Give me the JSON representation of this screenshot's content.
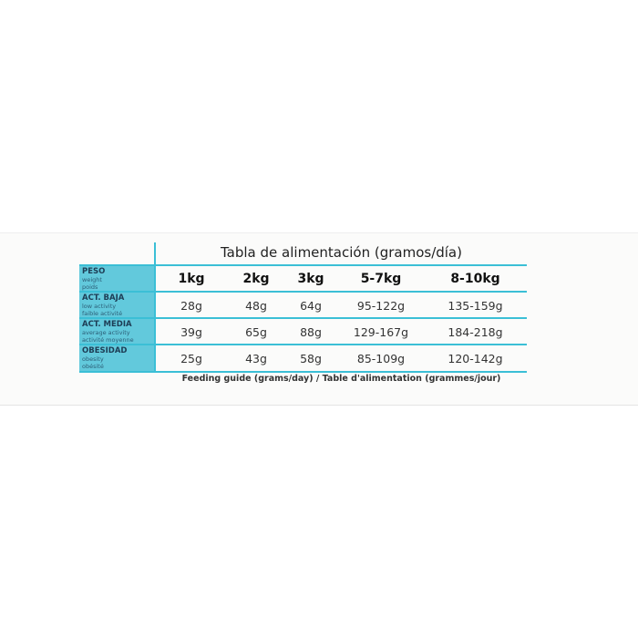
{
  "title": "Tabla de alimentación (gramos/día)",
  "footer": "Feeding guide (grams/day) / Table d'alimentation (grammes/jour)",
  "accent": "#3bbfd6",
  "rows": [
    {
      "label": "PESO",
      "sub1": "weight",
      "sub2": "poids",
      "cells": [
        "1kg",
        "2kg",
        "3kg",
        "5-7kg",
        "8-10kg"
      ]
    },
    {
      "label": "ACT. BAJA",
      "sub1": "low activity",
      "sub2": "faible activité",
      "cells": [
        "28g",
        "48g",
        "64g",
        "95-122g",
        "135-159g"
      ]
    },
    {
      "label": "ACT. MEDIA",
      "sub1": "average activity",
      "sub2": "activité moyenne",
      "cells": [
        "39g",
        "65g",
        "88g",
        "129-167g",
        "184-218g"
      ]
    },
    {
      "label": "OBESIDAD",
      "sub1": "obesity",
      "sub2": "obésité",
      "cells": [
        "25g",
        "43g",
        "58g",
        "85-109g",
        "120-142g"
      ]
    }
  ]
}
